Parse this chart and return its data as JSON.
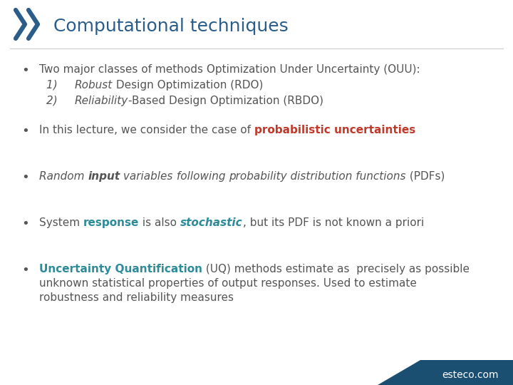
{
  "title": "Computational techniques",
  "title_color": "#2A5D8A",
  "title_fontsize": 18,
  "background_color": "#FFFFFF",
  "teal_color": "#2E8B9A",
  "red_color": "#C0392B",
  "footer_color": "#1B4F72",
  "footer_text": "esteco.com",
  "text_color": "#555555",
  "bullet_fontsize": 11,
  "chevron_color": "#2A5D8A",
  "divider_color": "#CCCCCC",
  "bullet1_line1": "Two major classes of methods Optimization Under Uncertainty (OUU):",
  "bullet1_sub1_num": "1)    ",
  "bullet1_sub1_italic": "Robust",
  "bullet1_sub1_rest": " Design Optimization (RDO)",
  "bullet1_sub2_num": "2)    ",
  "bullet1_sub2_italic": "Reliability",
  "bullet1_sub2_rest": "-Based Design Optimization (RBDO)",
  "bullet2_prefix": "In this lecture, we consider the case of ",
  "bullet2_highlight": "probabilistic uncertainties",
  "bullet3_parts": [
    {
      "text": "Random ",
      "style": "italic"
    },
    {
      "text": "input",
      "style": "bold-italic"
    },
    {
      "text": " variables",
      "style": "italic"
    },
    {
      "text": " following ",
      "style": "italic"
    },
    {
      "text": "probability distribution functions",
      "style": "italic"
    },
    {
      "text": " (PDFs)",
      "style": "normal"
    }
  ],
  "bullet4_parts": [
    {
      "text": "System ",
      "style": "normal",
      "color": "#555555"
    },
    {
      "text": "response",
      "style": "bold",
      "color": "#2E8B9A"
    },
    {
      "text": " is also ",
      "style": "normal",
      "color": "#555555"
    },
    {
      "text": "stochastic",
      "style": "bold-italic",
      "color": "#2E8B9A"
    },
    {
      "text": ", but its PDF is not known a priori",
      "style": "normal",
      "color": "#555555"
    }
  ],
  "bullet5_bold": "Uncertainty Quantification",
  "bullet5_rest1": " (UQ) methods estimate as  precisely as possible",
  "bullet5_rest2": "unknown statistical properties of output responses. Used to estimate",
  "bullet5_rest3": "robustness and reliability measures"
}
